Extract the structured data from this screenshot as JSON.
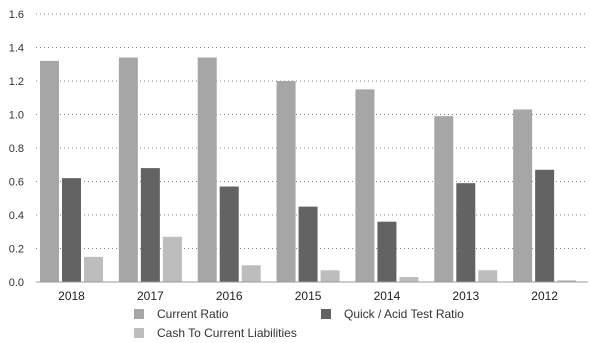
{
  "chart_data": {
    "type": "bar",
    "categories": [
      "2018",
      "2017",
      "2016",
      "2015",
      "2014",
      "2013",
      "2012"
    ],
    "series": [
      {
        "name": "Current Ratio",
        "values": [
          1.32,
          1.34,
          1.34,
          1.2,
          1.15,
          0.99,
          1.03
        ],
        "color": "#a6a6a6"
      },
      {
        "name": "Quick / Acid Test Ratio",
        "values": [
          0.62,
          0.68,
          0.57,
          0.45,
          0.36,
          0.59,
          0.67
        ],
        "color": "#636363"
      },
      {
        "name": "Cash To Current Liabilities",
        "values": [
          0.15,
          0.27,
          0.1,
          0.07,
          0.03,
          0.07,
          0.01
        ],
        "color": "#bdbdbd"
      }
    ],
    "ylim": [
      0,
      1.6
    ],
    "yticks": [
      "0.0",
      "0.2",
      "0.4",
      "0.6",
      "0.8",
      "1.0",
      "1.2",
      "1.4",
      "1.6"
    ],
    "grid": "dotted horizontal",
    "legend_position": "bottom",
    "title": "",
    "xlabel": "",
    "ylabel": ""
  }
}
